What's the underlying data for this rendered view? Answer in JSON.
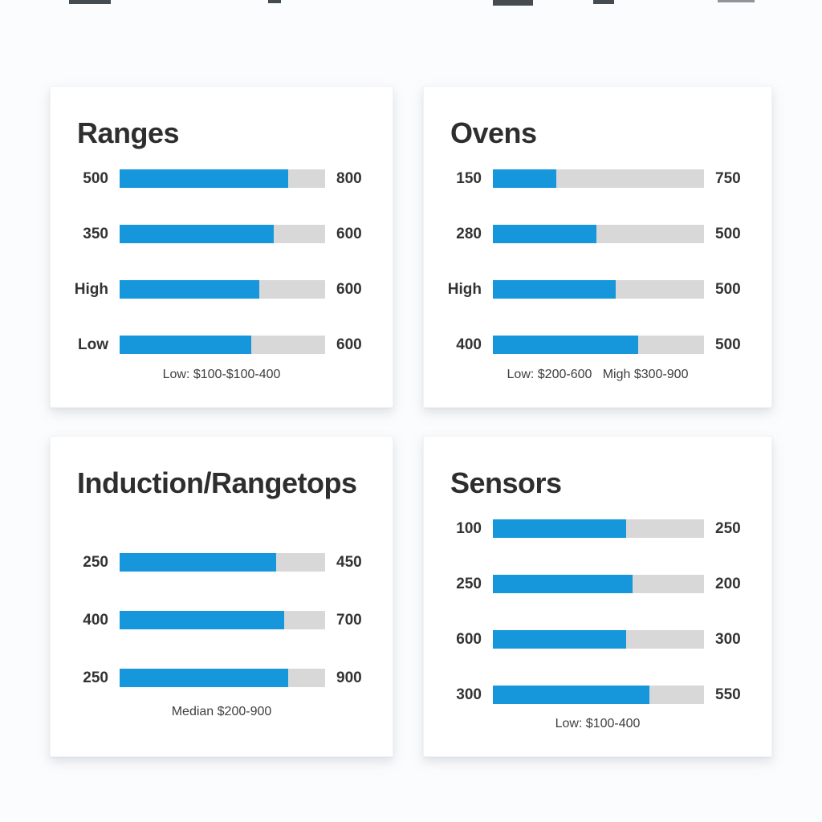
{
  "page": {
    "background": "#fbfcfd"
  },
  "colors": {
    "bar_fill": "#1697dc",
    "bar_track": "#d8d8d8",
    "card_background": "#ffffff",
    "title_text": "#2e2e2e",
    "label_text": "#333333",
    "caption_text": "#3e3e3e"
  },
  "chart_data": [
    {
      "type": "bar",
      "title": "Ranges",
      "categories": [
        "500",
        "350",
        "High",
        "Low"
      ],
      "right_values": [
        "800",
        "600",
        "600",
        "600"
      ],
      "fill_pct": [
        82,
        75,
        68,
        64
      ],
      "caption": "Low: $100-$100-400",
      "grid": false,
      "legend_position": "none",
      "orientation": "horizontal"
    },
    {
      "type": "bar",
      "title": "Ovens",
      "categories": [
        "150",
        "280",
        "High",
        "400"
      ],
      "right_values": [
        "750",
        "500",
        "500",
        "500"
      ],
      "fill_pct": [
        30,
        49,
        58,
        69
      ],
      "caption": "Low: $200-600   Migh $300-900",
      "grid": false,
      "legend_position": "none",
      "orientation": "horizontal"
    },
    {
      "type": "bar",
      "title": "Induction/Rangetops",
      "categories": [
        "250",
        "400",
        "250"
      ],
      "right_values": [
        "450",
        "700",
        "900"
      ],
      "fill_pct": [
        76,
        80,
        82
      ],
      "caption": "Median $200-900",
      "grid": false,
      "legend_position": "none",
      "orientation": "horizontal"
    },
    {
      "type": "bar",
      "title": "Sensors",
      "categories": [
        "100",
        "250",
        "600",
        "300"
      ],
      "right_values": [
        "250",
        "200",
        "300",
        "550"
      ],
      "fill_pct": [
        63,
        66,
        63,
        74
      ],
      "caption": "Low: $100-400",
      "grid": false,
      "legend_position": "none",
      "orientation": "horizontal"
    }
  ]
}
